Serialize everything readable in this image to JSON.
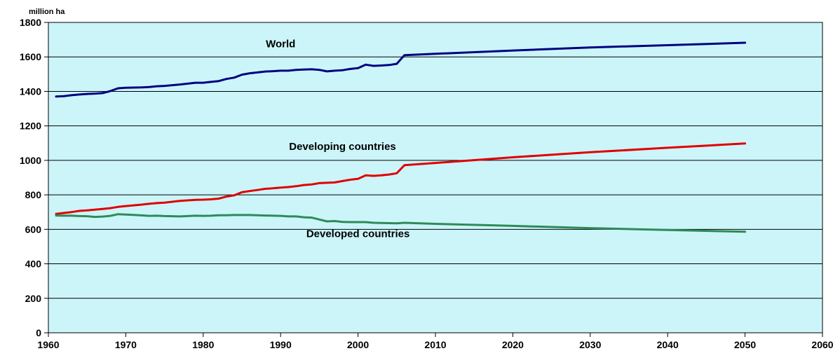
{
  "chart_data": {
    "type": "line",
    "title": "",
    "xlabel": "",
    "ylabel": "million ha",
    "xlim": [
      1960,
      2060
    ],
    "ylim": [
      0,
      1800
    ],
    "x_ticks": [
      1960,
      1970,
      1980,
      1990,
      2000,
      2010,
      2020,
      2030,
      2040,
      2050,
      2060
    ],
    "y_ticks": [
      0,
      200,
      400,
      600,
      800,
      1000,
      1200,
      1400,
      1600,
      1800
    ],
    "grid": "horizontal",
    "plot_background": "#ccf5fa",
    "legend": "none",
    "series": [
      {
        "name": "World",
        "color": "#000080",
        "label_at": [
          1990,
          1655
        ],
        "points": [
          [
            1961,
            1370
          ],
          [
            1962,
            1372
          ],
          [
            1963,
            1378
          ],
          [
            1964,
            1382
          ],
          [
            1965,
            1385
          ],
          [
            1966,
            1387
          ],
          [
            1967,
            1390
          ],
          [
            1968,
            1402
          ],
          [
            1969,
            1418
          ],
          [
            1970,
            1421
          ],
          [
            1971,
            1422
          ],
          [
            1972,
            1423
          ],
          [
            1973,
            1425
          ],
          [
            1974,
            1430
          ],
          [
            1975,
            1432
          ],
          [
            1976,
            1436
          ],
          [
            1977,
            1440
          ],
          [
            1978,
            1445
          ],
          [
            1979,
            1450
          ],
          [
            1980,
            1450
          ],
          [
            1981,
            1455
          ],
          [
            1982,
            1460
          ],
          [
            1983,
            1472
          ],
          [
            1984,
            1480
          ],
          [
            1985,
            1497
          ],
          [
            1986,
            1505
          ],
          [
            1987,
            1510
          ],
          [
            1988,
            1515
          ],
          [
            1989,
            1517
          ],
          [
            1990,
            1520
          ],
          [
            1991,
            1520
          ],
          [
            1992,
            1525
          ],
          [
            1993,
            1527
          ],
          [
            1994,
            1528
          ],
          [
            1995,
            1525
          ],
          [
            1996,
            1516
          ],
          [
            1997,
            1520
          ],
          [
            1998,
            1523
          ],
          [
            1999,
            1530
          ],
          [
            2000,
            1535
          ],
          [
            2001,
            1555
          ],
          [
            2002,
            1548
          ],
          [
            2003,
            1550
          ],
          [
            2004,
            1553
          ],
          [
            2005,
            1560
          ],
          [
            2006,
            1610
          ],
          [
            2010,
            1618
          ],
          [
            2020,
            1637
          ],
          [
            2030,
            1655
          ],
          [
            2040,
            1668
          ],
          [
            2050,
            1682
          ]
        ]
      },
      {
        "name": "Developing countries",
        "color": "#e00000",
        "label_at": [
          1998,
          1060
        ],
        "points": [
          [
            1961,
            690
          ],
          [
            1962,
            695
          ],
          [
            1963,
            700
          ],
          [
            1964,
            707
          ],
          [
            1965,
            710
          ],
          [
            1966,
            714
          ],
          [
            1967,
            718
          ],
          [
            1968,
            723
          ],
          [
            1969,
            730
          ],
          [
            1970,
            735
          ],
          [
            1971,
            739
          ],
          [
            1972,
            743
          ],
          [
            1973,
            748
          ],
          [
            1974,
            752
          ],
          [
            1975,
            755
          ],
          [
            1976,
            760
          ],
          [
            1977,
            765
          ],
          [
            1978,
            768
          ],
          [
            1979,
            771
          ],
          [
            1980,
            772
          ],
          [
            1981,
            774
          ],
          [
            1982,
            778
          ],
          [
            1983,
            790
          ],
          [
            1984,
            797
          ],
          [
            1985,
            815
          ],
          [
            1986,
            822
          ],
          [
            1987,
            828
          ],
          [
            1988,
            835
          ],
          [
            1989,
            838
          ],
          [
            1990,
            842
          ],
          [
            1991,
            845
          ],
          [
            1992,
            850
          ],
          [
            1993,
            857
          ],
          [
            1994,
            860
          ],
          [
            1995,
            868
          ],
          [
            1996,
            870
          ],
          [
            1997,
            872
          ],
          [
            1998,
            880
          ],
          [
            1999,
            888
          ],
          [
            2000,
            893
          ],
          [
            2001,
            913
          ],
          [
            2002,
            910
          ],
          [
            2003,
            913
          ],
          [
            2004,
            918
          ],
          [
            2005,
            925
          ],
          [
            2006,
            972
          ],
          [
            2010,
            985
          ],
          [
            2020,
            1018
          ],
          [
            2030,
            1047
          ],
          [
            2040,
            1073
          ],
          [
            2050,
            1098
          ]
        ]
      },
      {
        "name": "Developed countries",
        "color": "#2e8b57",
        "label_at": [
          2000,
          555
        ],
        "points": [
          [
            1961,
            680
          ],
          [
            1962,
            679
          ],
          [
            1963,
            679
          ],
          [
            1964,
            677
          ],
          [
            1965,
            676
          ],
          [
            1966,
            672
          ],
          [
            1967,
            674
          ],
          [
            1968,
            678
          ],
          [
            1969,
            688
          ],
          [
            1970,
            686
          ],
          [
            1971,
            684
          ],
          [
            1972,
            681
          ],
          [
            1973,
            678
          ],
          [
            1974,
            679
          ],
          [
            1975,
            677
          ],
          [
            1976,
            676
          ],
          [
            1977,
            675
          ],
          [
            1978,
            677
          ],
          [
            1979,
            679
          ],
          [
            1980,
            678
          ],
          [
            1981,
            679
          ],
          [
            1982,
            682
          ],
          [
            1983,
            682
          ],
          [
            1984,
            683
          ],
          [
            1985,
            683
          ],
          [
            1986,
            683
          ],
          [
            1987,
            682
          ],
          [
            1988,
            680
          ],
          [
            1989,
            679
          ],
          [
            1990,
            678
          ],
          [
            1991,
            675
          ],
          [
            1992,
            675
          ],
          [
            1993,
            670
          ],
          [
            1994,
            668
          ],
          [
            1995,
            657
          ],
          [
            1996,
            646
          ],
          [
            1997,
            648
          ],
          [
            1998,
            643
          ],
          [
            1999,
            642
          ],
          [
            2000,
            642
          ],
          [
            2001,
            642
          ],
          [
            2002,
            638
          ],
          [
            2003,
            637
          ],
          [
            2004,
            636
          ],
          [
            2005,
            635
          ],
          [
            2006,
            638
          ],
          [
            2010,
            632
          ],
          [
            2020,
            620
          ],
          [
            2030,
            607
          ],
          [
            2040,
            596
          ],
          [
            2050,
            586
          ]
        ]
      }
    ]
  }
}
